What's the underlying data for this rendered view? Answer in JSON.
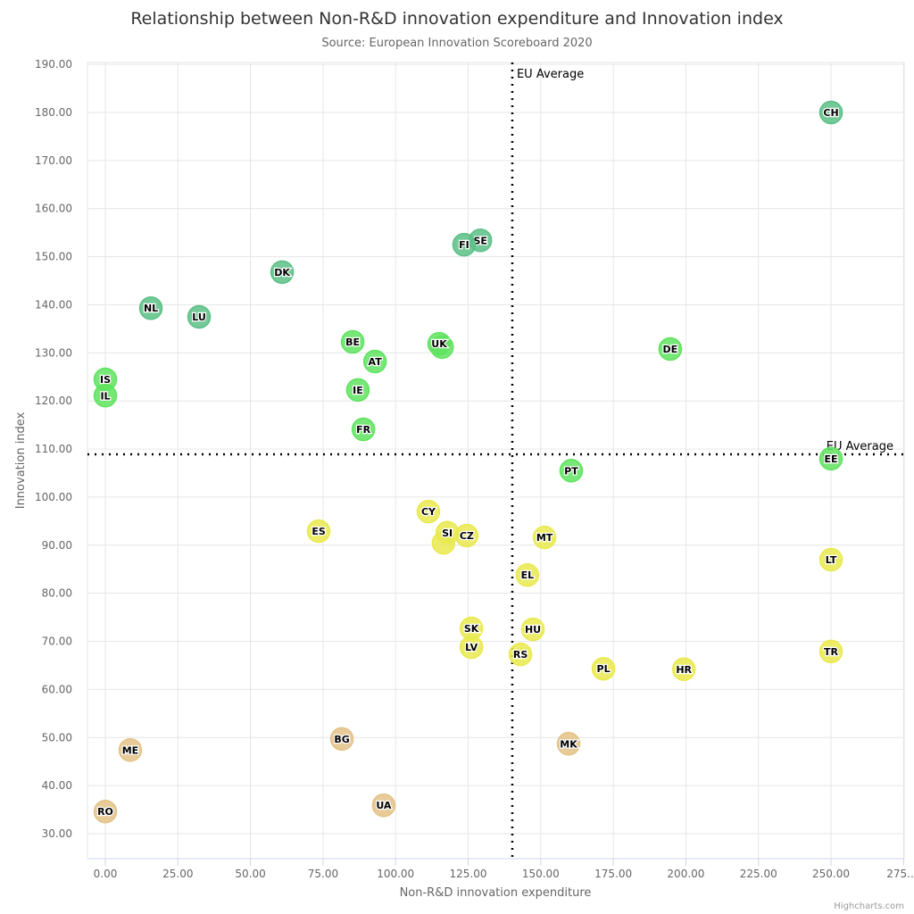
{
  "chart_data": {
    "type": "scatter",
    "title": "Relationship between Non-R&D innovation expenditure and Innovation index",
    "subtitle": "Source: European Innovation Scoreboard 2020",
    "xlabel": "Non-R&D innovation expenditure",
    "ylabel": "Innovation index",
    "xlim": [
      -6.15,
      275.2
    ],
    "ylim": [
      24.8,
      190.4
    ],
    "xticks": [
      0,
      25,
      50,
      75,
      100,
      125,
      150,
      175,
      200,
      225,
      250,
      275
    ],
    "xtick_labels": [
      "0.00",
      "25.00",
      "50.00",
      "75.00",
      "100.00",
      "125.00",
      "150.00",
      "175.00",
      "200.00",
      "225.00",
      "250.00",
      "275...."
    ],
    "yticks": [
      30,
      40,
      50,
      60,
      70,
      80,
      90,
      100,
      110,
      120,
      130,
      140,
      150,
      160,
      170,
      180,
      190
    ],
    "ytick_labels": [
      "30.00",
      "40.00",
      "50.00",
      "60.00",
      "70.00",
      "80.00",
      "90.00",
      "100.00",
      "110.00",
      "120.00",
      "130.00",
      "140.00",
      "150.00",
      "160.00",
      "170.00",
      "180.00",
      "190.00"
    ],
    "grid": true,
    "legend": "none",
    "plot_lines": [
      {
        "axis": "x",
        "value": 140.2,
        "label": "EU Average"
      },
      {
        "axis": "y",
        "value": 108.9,
        "label": "EU Average"
      }
    ],
    "group_colors": {
      "leader": "#5cbf86",
      "strong": "#5fe35f",
      "moderate": "#e9e94f",
      "modest": "#e3c286"
    },
    "points": [
      {
        "label": "CH",
        "x": 250,
        "y": 180.0,
        "group": "leader"
      },
      {
        "label": "SE",
        "x": 129.2,
        "y": 153.4,
        "group": "leader"
      },
      {
        "label": "FI",
        "x": 123.6,
        "y": 152.5,
        "group": "leader"
      },
      {
        "label": "DK",
        "x": 60.9,
        "y": 146.8,
        "group": "leader"
      },
      {
        "label": "NL",
        "x": 15.7,
        "y": 139.3,
        "group": "leader"
      },
      {
        "label": "LU",
        "x": 32.3,
        "y": 137.5,
        "group": "leader"
      },
      {
        "label": "BE",
        "x": 85.2,
        "y": 132.3,
        "group": "strong"
      },
      {
        "label": "",
        "x": 116.0,
        "y": 131.2,
        "group": "strong"
      },
      {
        "label": "UK",
        "x": 115.0,
        "y": 131.9,
        "group": "strong"
      },
      {
        "label": "AT",
        "x": 92.9,
        "y": 128.2,
        "group": "strong"
      },
      {
        "label": "DE",
        "x": 194.6,
        "y": 130.8,
        "group": "strong"
      },
      {
        "label": "IS",
        "x": 0,
        "y": 124.5,
        "group": "strong"
      },
      {
        "label": "IL",
        "x": 0,
        "y": 121.1,
        "group": "strong"
      },
      {
        "label": "IE",
        "x": 87.0,
        "y": 122.3,
        "group": "strong"
      },
      {
        "label": "FR",
        "x": 88.9,
        "y": 114.1,
        "group": "strong"
      },
      {
        "label": "PT",
        "x": 160.5,
        "y": 105.5,
        "group": "strong"
      },
      {
        "label": "EE",
        "x": 250,
        "y": 108.0,
        "group": "strong"
      },
      {
        "label": "CY",
        "x": 111.3,
        "y": 97.0,
        "group": "moderate"
      },
      {
        "label": "ES",
        "x": 73.5,
        "y": 92.9,
        "group": "moderate"
      },
      {
        "label": "",
        "x": 116.5,
        "y": 90.5,
        "group": "moderate"
      },
      {
        "label": "SI",
        "x": 117.8,
        "y": 92.6,
        "group": "moderate"
      },
      {
        "label": "CZ",
        "x": 124.5,
        "y": 92.0,
        "group": "moderate"
      },
      {
        "label": "MT",
        "x": 151.3,
        "y": 91.6,
        "group": "moderate"
      },
      {
        "label": "LT",
        "x": 250,
        "y": 87.0,
        "group": "moderate"
      },
      {
        "label": "EL",
        "x": 145.4,
        "y": 83.8,
        "group": "moderate"
      },
      {
        "label": "SK",
        "x": 126.1,
        "y": 72.7,
        "group": "moderate"
      },
      {
        "label": "HU",
        "x": 147.3,
        "y": 72.5,
        "group": "moderate"
      },
      {
        "label": "LV",
        "x": 126.1,
        "y": 68.8,
        "group": "moderate"
      },
      {
        "label": "RS",
        "x": 143.0,
        "y": 67.3,
        "group": "moderate"
      },
      {
        "label": "TR",
        "x": 250,
        "y": 67.9,
        "group": "moderate"
      },
      {
        "label": "PL",
        "x": 171.6,
        "y": 64.3,
        "group": "moderate"
      },
      {
        "label": "HR",
        "x": 199.3,
        "y": 64.2,
        "group": "moderate"
      },
      {
        "label": "BG",
        "x": 81.5,
        "y": 49.7,
        "group": "modest"
      },
      {
        "label": "MK",
        "x": 159.6,
        "y": 48.7,
        "group": "modest"
      },
      {
        "label": "ME",
        "x": 8.6,
        "y": 47.4,
        "group": "modest"
      },
      {
        "label": "UA",
        "x": 95.9,
        "y": 35.9,
        "group": "modest"
      },
      {
        "label": "RO",
        "x": 0,
        "y": 34.6,
        "group": "modest"
      }
    ]
  },
  "credits": "Highcharts.com"
}
